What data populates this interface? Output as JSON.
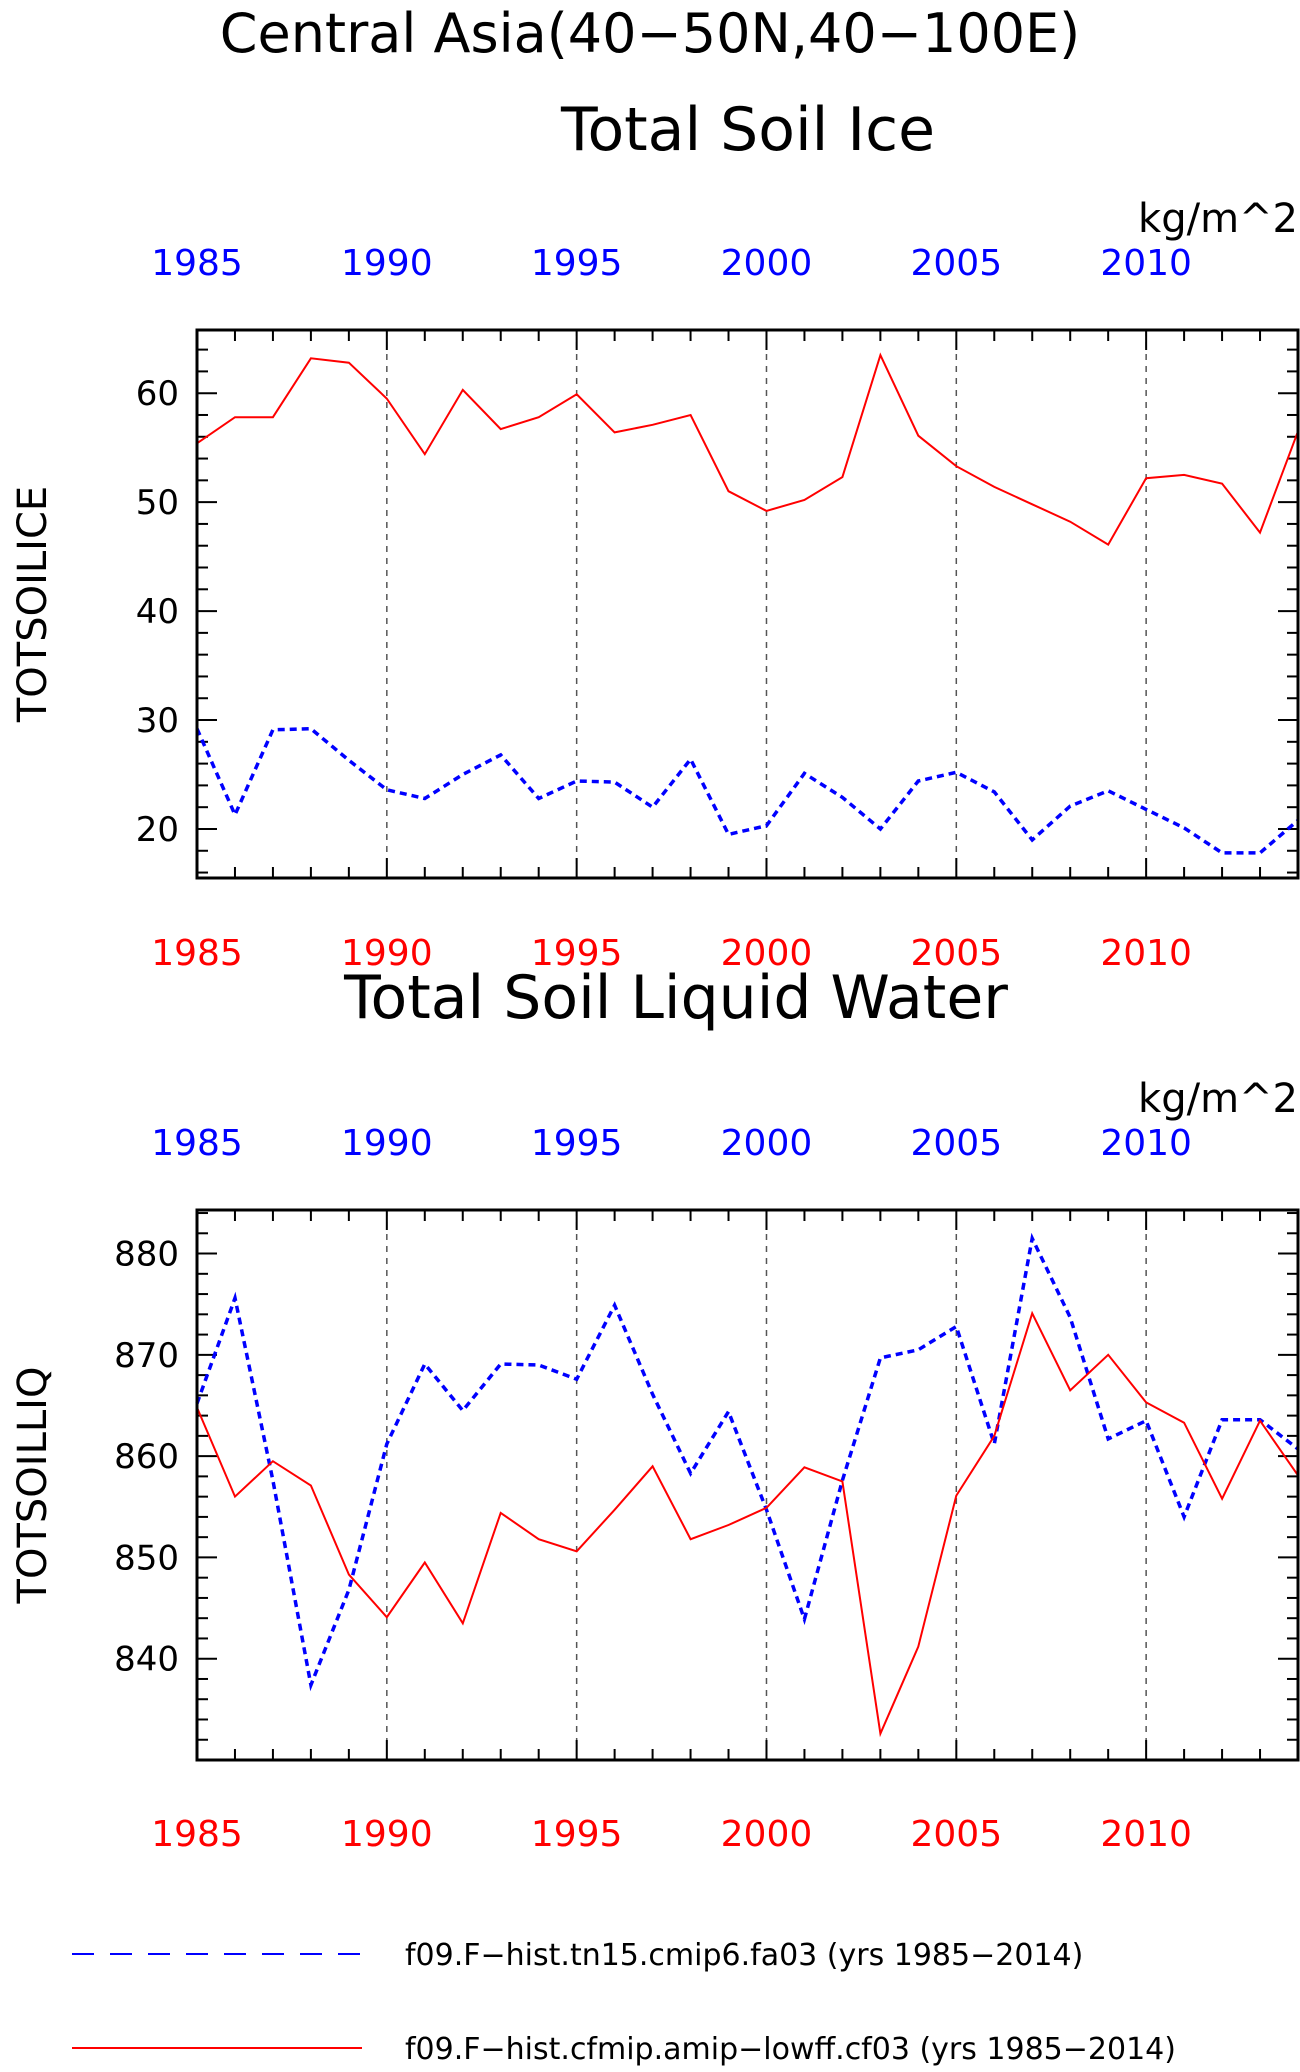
{
  "figure": {
    "title": "Central Asia(40−50N,40−100E)"
  },
  "colors": {
    "red": "#ff0000",
    "blue": "#0000ff",
    "grid": "#555555",
    "axis": "#000000"
  },
  "chart_data": [
    {
      "type": "line",
      "title": "Total Soil Ice",
      "units": "kg/m^2",
      "ylabel": "TOTSOILICE",
      "xlim": [
        1985,
        2014
      ],
      "ylim": [
        15.5,
        65.8
      ],
      "yticks": [
        20,
        30,
        40,
        50,
        60
      ],
      "xticks": [
        1985,
        1990,
        1995,
        2000,
        2005,
        2010
      ],
      "x": [
        1985,
        1986,
        1987,
        1988,
        1989,
        1990,
        1991,
        1992,
        1993,
        1994,
        1995,
        1996,
        1997,
        1998,
        1999,
        2000,
        2001,
        2002,
        2003,
        2004,
        2005,
        2006,
        2007,
        2008,
        2009,
        2010,
        2011,
        2012,
        2013,
        2014
      ],
      "grid": "vertical dashed at major x ticks",
      "series": [
        {
          "name": "f09.F−hist.tn15.cmip6.fa03 (yrs 1985−2014)",
          "color": "blue",
          "dash": "dotted",
          "values": [
            29.2,
            21.3,
            29.1,
            29.2,
            26.3,
            23.6,
            22.8,
            25.0,
            26.8,
            22.8,
            24.4,
            24.3,
            22.0,
            26.4,
            19.5,
            20.3,
            25.1,
            22.9,
            20.0,
            24.4,
            25.2,
            23.4,
            19.0,
            22.1,
            23.5,
            21.8,
            20.1,
            17.8,
            17.8,
            20.8
          ]
        },
        {
          "name": "f09.F−hist.cfmip.amip−lowff.cf03 (yrs 1985−2014)",
          "color": "red",
          "dash": "solid",
          "values": [
            55.4,
            57.8,
            57.8,
            63.2,
            62.8,
            59.5,
            54.4,
            60.3,
            56.7,
            57.8,
            59.9,
            56.4,
            57.1,
            58.0,
            51.0,
            49.2,
            50.2,
            52.3,
            63.5,
            56.1,
            53.3,
            51.4,
            49.8,
            48.2,
            46.1,
            52.2,
            52.5,
            51.7,
            47.2,
            56.5
          ]
        }
      ]
    },
    {
      "type": "line",
      "title": "Total Soil Liquid Water",
      "units": "kg/m^2",
      "ylabel": "TOTSOILLIQ",
      "xlim": [
        1985,
        2014
      ],
      "ylim": [
        830.0,
        884.3
      ],
      "yticks": [
        840,
        850,
        860,
        870,
        880
      ],
      "xticks": [
        1985,
        1990,
        1995,
        2000,
        2005,
        2010
      ],
      "x": [
        1985,
        1986,
        1987,
        1988,
        1989,
        1990,
        1991,
        1992,
        1993,
        1994,
        1995,
        1996,
        1997,
        1998,
        1999,
        2000,
        2001,
        2002,
        2003,
        2004,
        2005,
        2006,
        2007,
        2008,
        2009,
        2010,
        2011,
        2012,
        2013,
        2014
      ],
      "grid": "vertical dashed at major x ticks",
      "series": [
        {
          "name": "f09.F−hist.tn15.cmip6.fa03 (yrs 1985−2014)",
          "color": "blue",
          "dash": "dotted",
          "values": [
            865.2,
            875.6,
            857.6,
            837.4,
            846.8,
            861.2,
            869.1,
            864.5,
            869.1,
            869.0,
            867.6,
            874.9,
            866.1,
            858.3,
            864.4,
            854.7,
            843.9,
            857.6,
            869.7,
            870.5,
            872.8,
            861.2,
            881.5,
            873.7,
            861.7,
            863.5,
            854.0,
            863.6,
            863.6,
            860.7
          ]
        },
        {
          "name": "f09.F−hist.cfmip.amip−lowff.cf03 (yrs 1985−2014)",
          "color": "red",
          "dash": "solid",
          "values": [
            864.8,
            856.0,
            859.5,
            857.1,
            848.3,
            844.1,
            849.5,
            843.5,
            854.4,
            851.8,
            850.6,
            854.7,
            859.0,
            851.8,
            853.2,
            854.9,
            858.9,
            857.5,
            832.6,
            841.2,
            856.1,
            862.0,
            874.1,
            866.5,
            870.0,
            865.3,
            863.3,
            855.8,
            863.5,
            858.1
          ]
        }
      ]
    }
  ],
  "legend": {
    "items": [
      {
        "label": "f09.F−hist.tn15.cmip6.fa03 (yrs 1985−2014)",
        "color": "blue",
        "dash": "dashed"
      },
      {
        "label": "f09.F−hist.cfmip.amip−lowff.cf03 (yrs 1985−2014)",
        "color": "red",
        "dash": "solid"
      }
    ]
  }
}
